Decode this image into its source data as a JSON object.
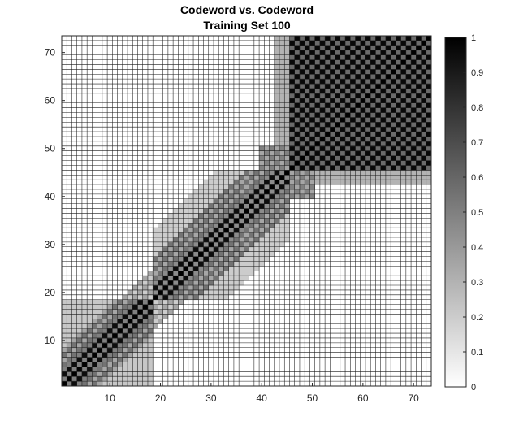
{
  "chart_data": {
    "type": "heatmap",
    "title": "Codeword vs. Codeword",
    "subtitle": "Training Set 100",
    "xlabel": "",
    "ylabel": "",
    "n": 73,
    "xlim": [
      1,
      74
    ],
    "ylim": [
      1,
      74
    ],
    "x_ticks": [
      "10",
      "20",
      "30",
      "40",
      "50",
      "60",
      "70"
    ],
    "y_ticks": [
      "10",
      "20",
      "30",
      "40",
      "50",
      "60",
      "70"
    ],
    "colorbar": {
      "range": [
        0,
        1
      ],
      "ticks": [
        "0",
        "0.1",
        "0.2",
        "0.3",
        "0.4",
        "0.5",
        "0.6",
        "0.7",
        "0.8",
        "0.9",
        "1"
      ],
      "colormap": "gray-reversed",
      "low_color": "#ffffff",
      "high_color": "#000000"
    },
    "grid": true,
    "blocks": [
      {
        "codewords": [
          1,
          18
        ],
        "similarity_range": [
          0.25,
          1.0
        ],
        "pattern": "diagonal band, checkerboard near diagonal"
      },
      {
        "codewords": [
          19,
          45
        ],
        "similarity_range": [
          0.2,
          1.0
        ],
        "pattern": "diagonal band, checkerboard near diagonal"
      },
      {
        "codewords": [
          46,
          73
        ],
        "similarity_range": [
          0.55,
          1.0
        ],
        "pattern": "strong checkerboard block"
      }
    ]
  }
}
